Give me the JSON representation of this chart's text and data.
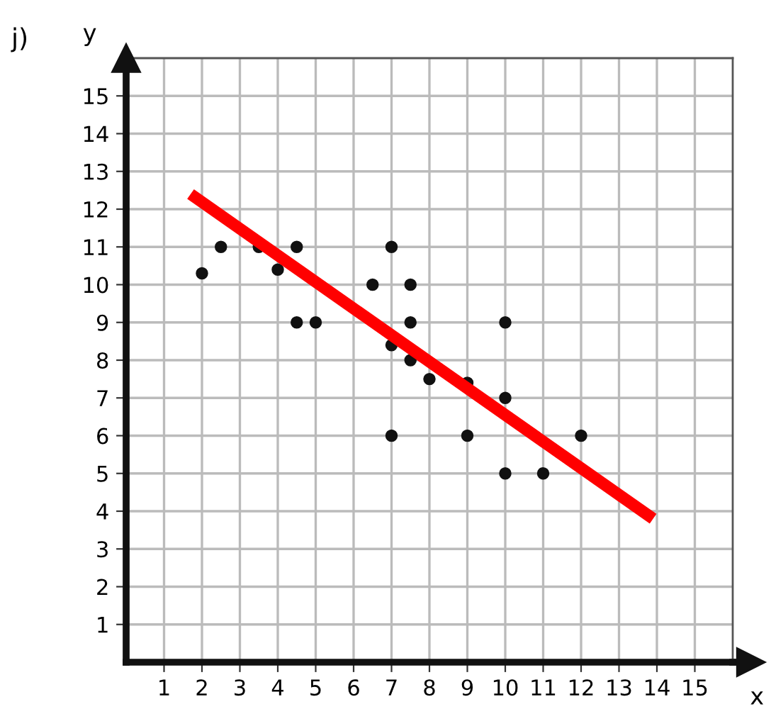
{
  "chart_data": {
    "type": "scatter",
    "title": "j)",
    "xlabel": "x",
    "ylabel": "y",
    "xlim": [
      0,
      16
    ],
    "ylim": [
      0,
      16
    ],
    "xticks": [
      1,
      2,
      3,
      4,
      5,
      6,
      7,
      8,
      9,
      10,
      11,
      12,
      13,
      14,
      15
    ],
    "yticks": [
      1,
      2,
      3,
      4,
      5,
      6,
      7,
      8,
      9,
      10,
      11,
      12,
      13,
      14,
      15
    ],
    "grid": true,
    "series": [
      {
        "marker": "circle",
        "color": "#111111",
        "x": [
          2,
          2.5,
          3.5,
          4,
          4.5,
          4.5,
          5,
          6.5,
          7,
          7,
          7,
          7.5,
          7.5,
          7.5,
          8,
          9,
          9,
          10,
          10,
          10,
          11,
          12
        ],
        "values": [
          10.3,
          11,
          11,
          10.4,
          11,
          9,
          9,
          10,
          11,
          8.4,
          6,
          10,
          9,
          8,
          7.5,
          7.4,
          6,
          9,
          7,
          5,
          5,
          6
        ]
      },
      {
        "type": "line",
        "marker": "none",
        "color": "#ff0000",
        "x": [
          1.7,
          13.9
        ],
        "values": [
          12.4,
          3.8
        ]
      }
    ]
  }
}
